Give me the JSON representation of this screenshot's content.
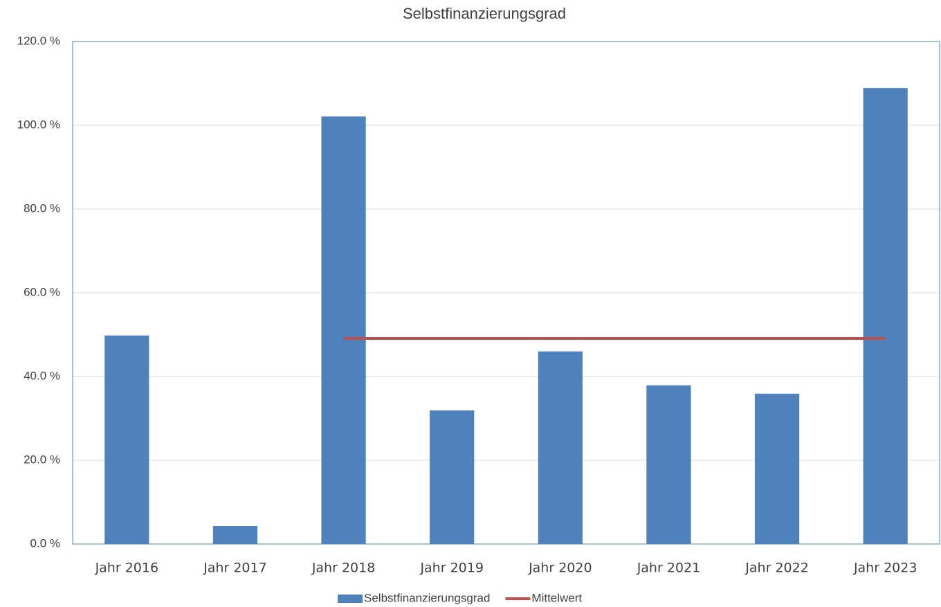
{
  "chart_data": {
    "type": "bar",
    "title": "Selbstfinanzierungsgrad",
    "categories": [
      "Jahr 2016",
      "Jahr 2017",
      "Jahr 2018",
      "Jahr 2019",
      "Jahr 2020",
      "Jahr 2021",
      "Jahr 2022",
      "Jahr 2023"
    ],
    "series": [
      {
        "name": "Selbstfinanzierungsgrad",
        "type": "bar",
        "color": "#4f81bd",
        "values": [
          49.8,
          4.3,
          102.1,
          31.9,
          46.0,
          37.9,
          35.9,
          108.9
        ]
      },
      {
        "name": "Mittelwert",
        "type": "line",
        "color": "#c0504d",
        "values": [
          null,
          null,
          49.1,
          49.1,
          49.1,
          49.1,
          49.1,
          49.1
        ]
      }
    ],
    "ylim": [
      0,
      120
    ],
    "yticks": [
      {
        "value": 0,
        "label": "0.0 %"
      },
      {
        "value": 20,
        "label": "20.0 %"
      },
      {
        "value": 40,
        "label": "40.0 %"
      },
      {
        "value": 60,
        "label": "60.0 %"
      },
      {
        "value": 80,
        "label": "80.0 %"
      },
      {
        "value": 100,
        "label": "100.0 %"
      },
      {
        "value": 120,
        "label": "120.0 %"
      }
    ],
    "grid": true,
    "legend": "bottom"
  }
}
